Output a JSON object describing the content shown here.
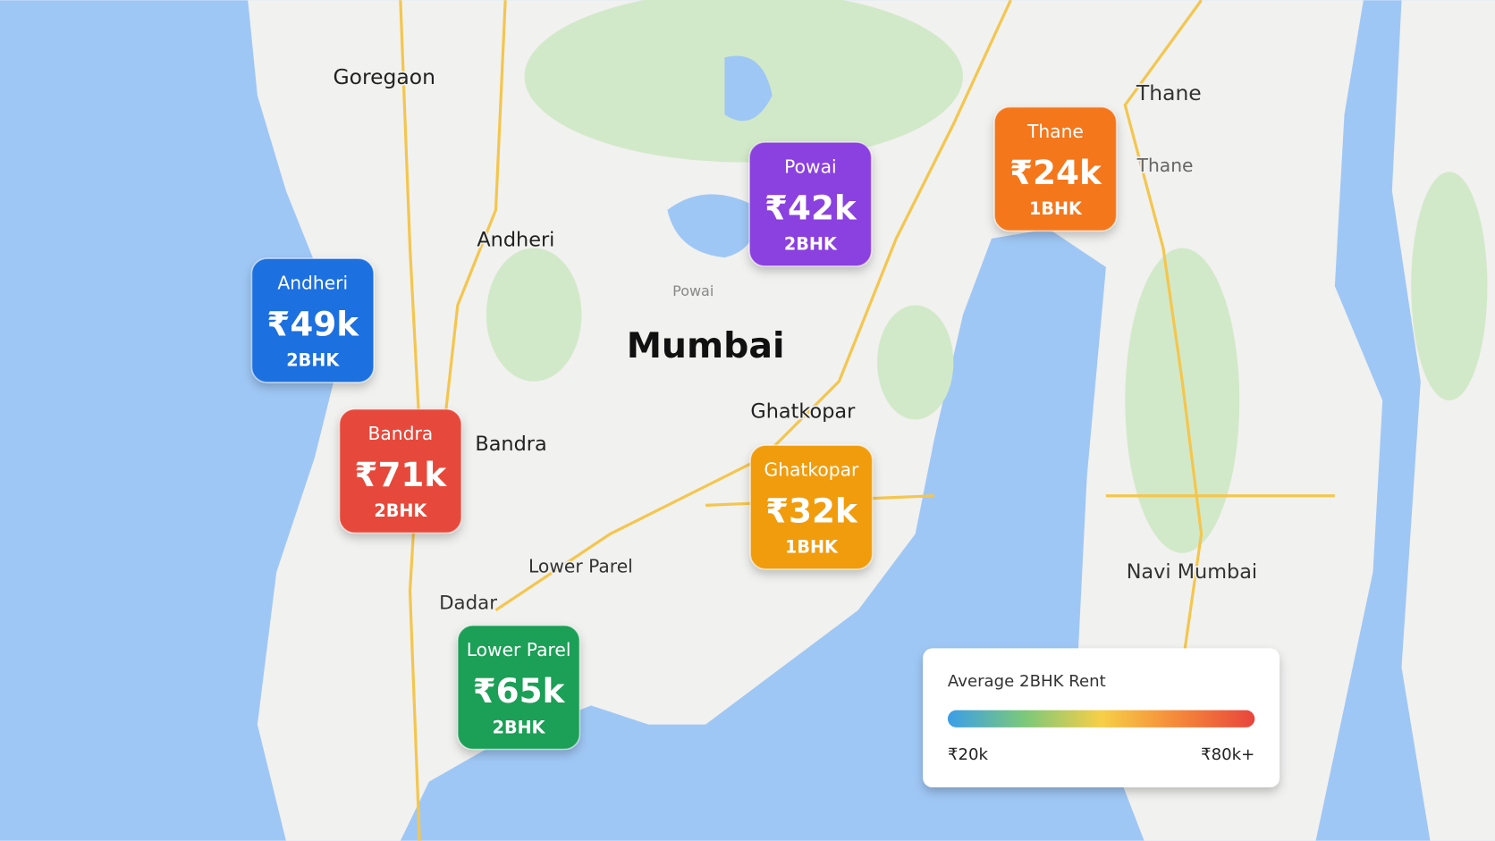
{
  "map_labels": [
    "Goregaon",
    "Andheri",
    "Powai",
    "Mumbai",
    "Ghatkopar",
    "Bandra",
    "Lower Parel",
    "Dadar",
    "Thane",
    "Thane",
    "Navi Mumbai"
  ],
  "markers": [
    {
      "area": "Andheri",
      "price": "₹49k",
      "type": "2BHK",
      "color": "#1c6fe0"
    },
    {
      "area": "Powai",
      "price": "₹42k",
      "type": "2BHK",
      "color": "#8b3fe0"
    },
    {
      "area": "Thane",
      "price": "₹24k",
      "type": "1BHK",
      "color": "#f4771d"
    },
    {
      "area": "Bandra",
      "price": "₹71k",
      "type": "2BHK",
      "color": "#e64a3b"
    },
    {
      "area": "Ghatkopar",
      "price": "₹32k",
      "type": "1BHK",
      "color": "#f19c0e"
    },
    {
      "area": "Lower Parel",
      "price": "₹65k",
      "type": "2BHK",
      "color": "#1c9f57"
    }
  ],
  "legend": {
    "title": "Average 2BHK Rent",
    "min": "₹20k",
    "max": "₹80k+",
    "colors": [
      "#3b9ee8",
      "#7cc87a",
      "#f7cf47",
      "#f5883a",
      "#e8453c"
    ]
  }
}
